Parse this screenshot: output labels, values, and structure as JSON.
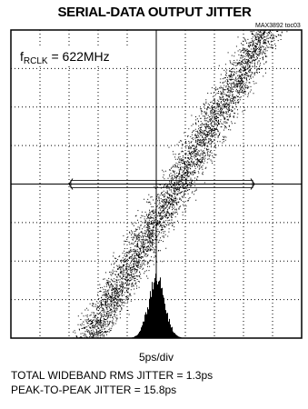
{
  "title": "SERIAL-DATA OUTPUT JITTER",
  "figure_code": "MAX3892 toc03",
  "condition": {
    "symbol": "f",
    "subscript": "RCLK",
    "rest": " = 622MHz"
  },
  "x_scale": "5ps/div",
  "notes": [
    "TOTAL WIDEBAND RMS JITTER = 1.3ps",
    "PEAK-TO-PEAK JITTER = 15.8ps"
  ]
}
